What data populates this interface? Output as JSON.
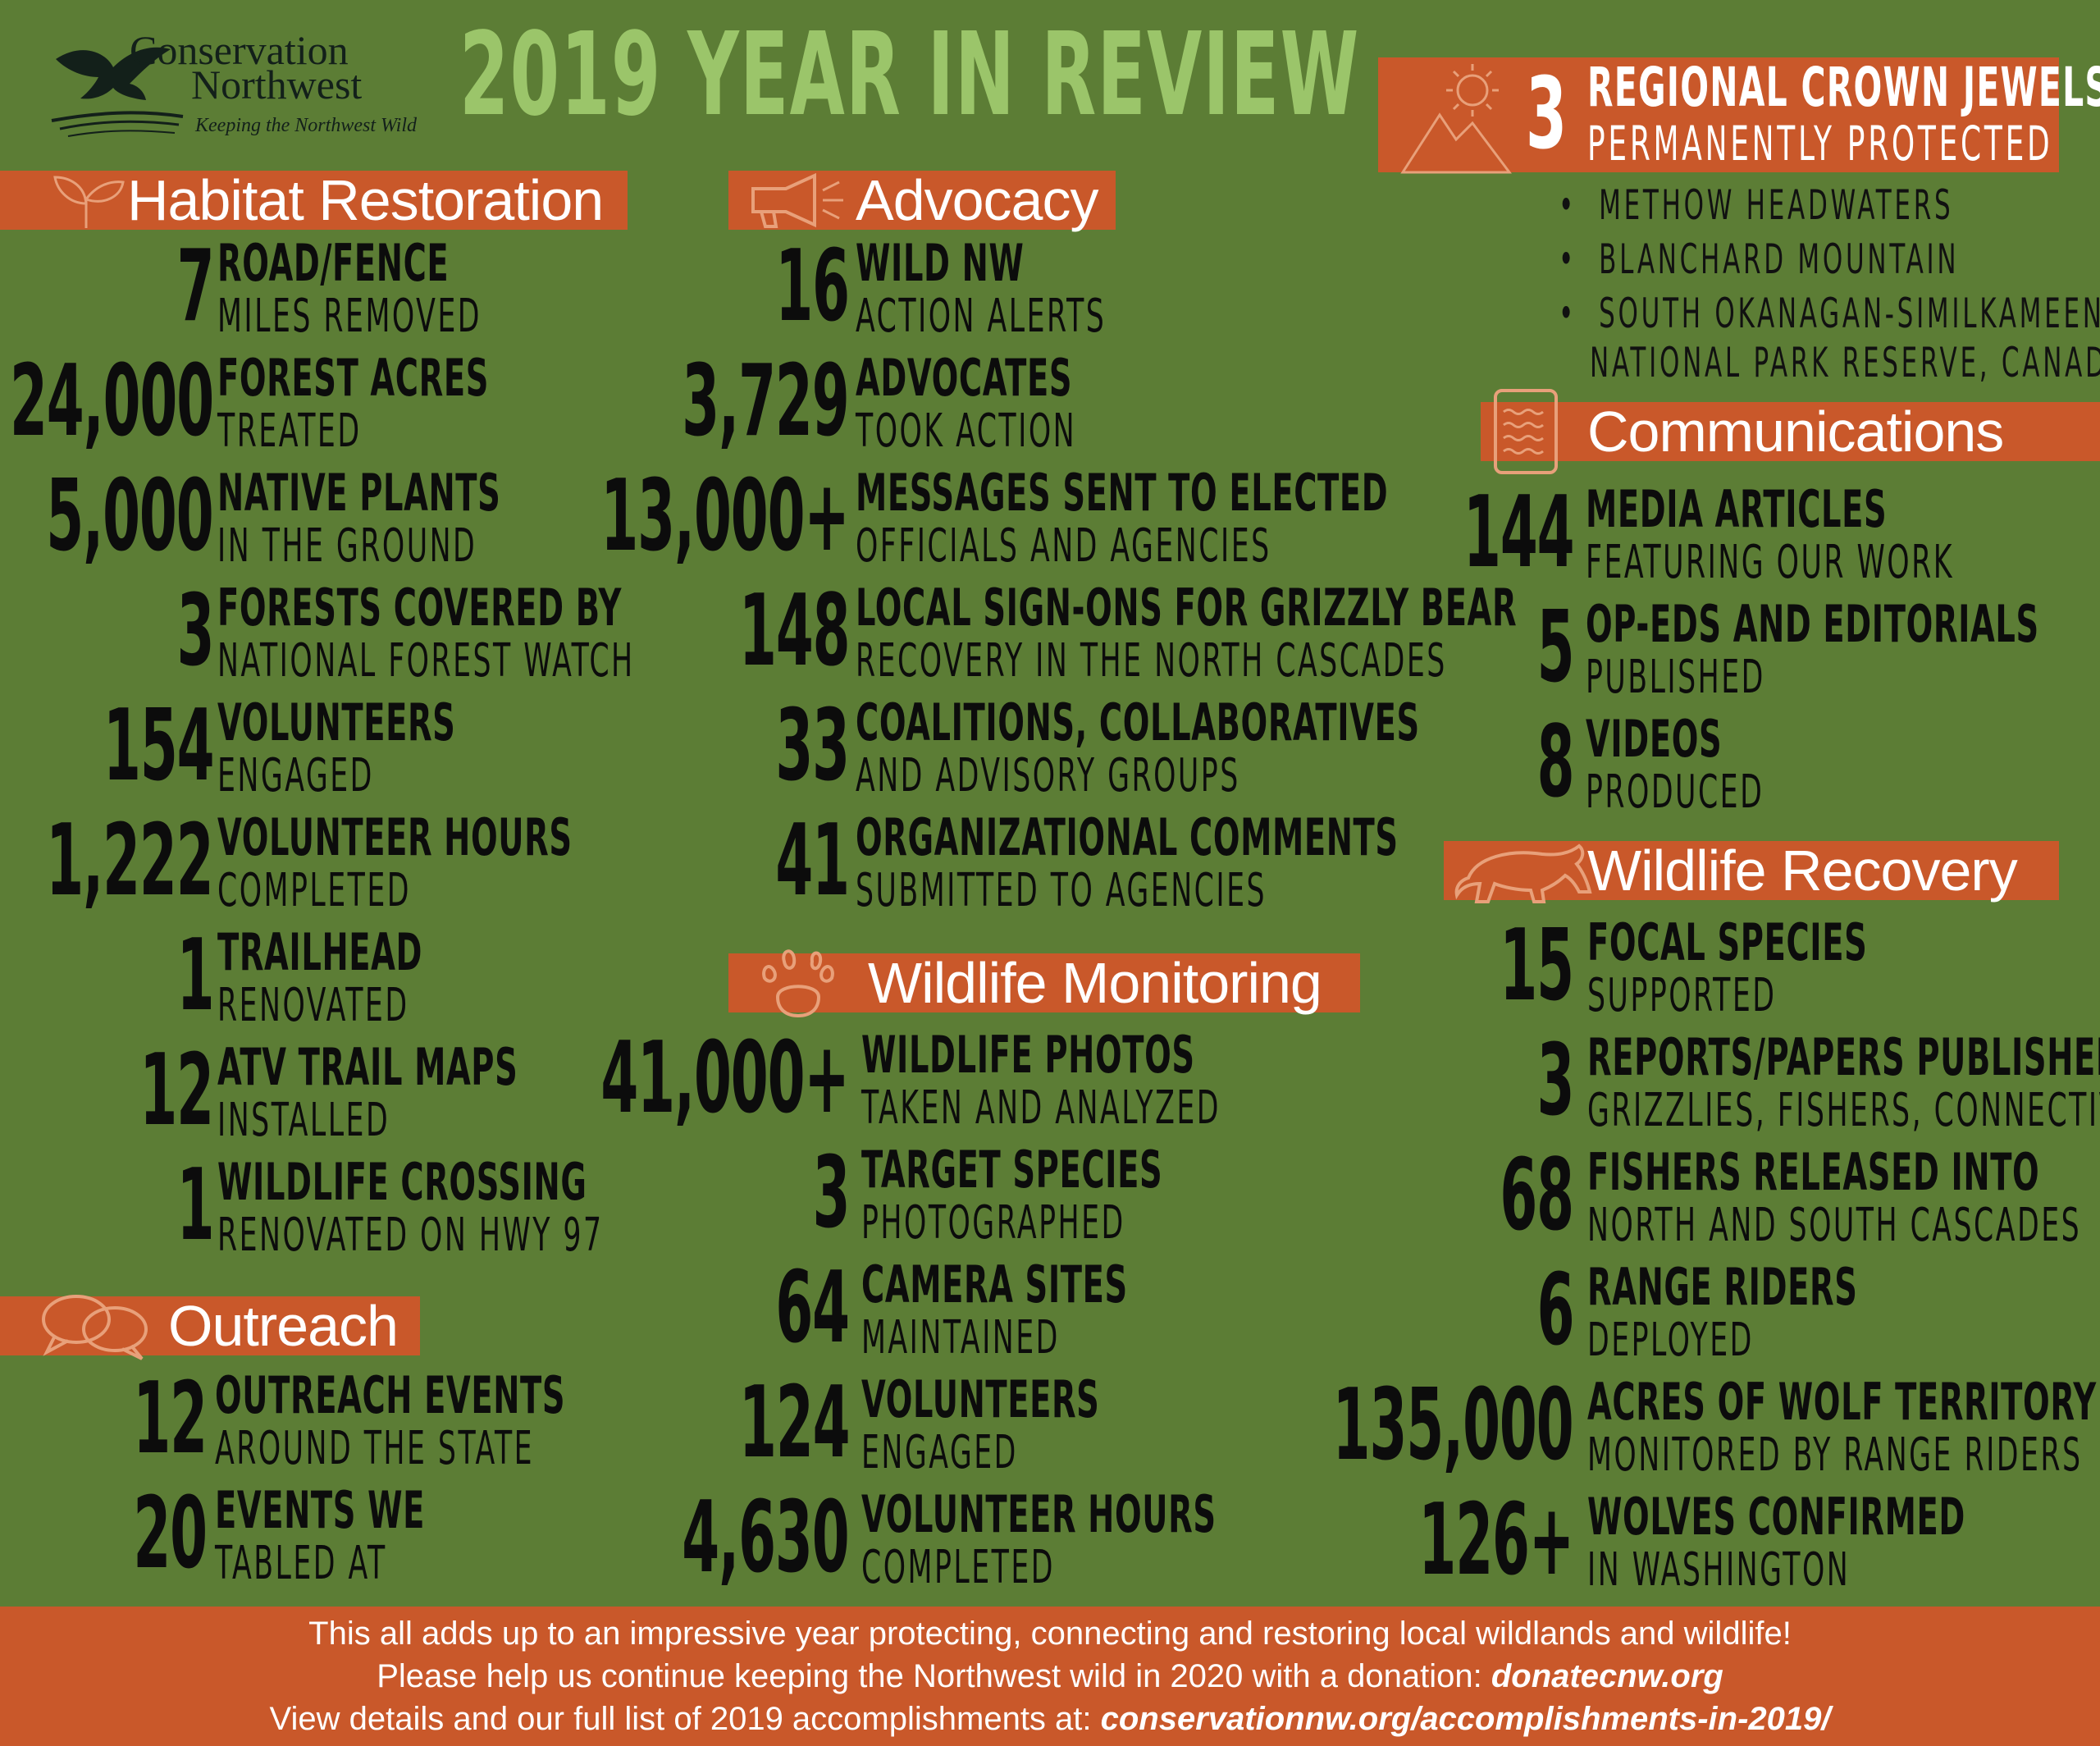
{
  "logo": {
    "name_line1": "Conservation",
    "name_line2": "Northwest",
    "tagline": "Keeping the Northwest Wild"
  },
  "title": "2019 YEAR IN REVIEW",
  "crown_jewels": {
    "number": "3",
    "line1": "REGIONAL CROWN JEWELS",
    "line2": "PERMANENTLY PROTECTED",
    "items": [
      "METHOW HEADWATERS",
      "BLANCHARD MOUNTAIN",
      "SOUTH OKANAGAN-SIMILKAMEEN",
      "NATIONAL PARK RESERVE, CANADA"
    ]
  },
  "sections": {
    "habitat": {
      "title": "Habitat Restoration",
      "stats": [
        {
          "num": "7",
          "l1": "ROAD/FENCE",
          "l2": "MILES REMOVED"
        },
        {
          "num": "24,000",
          "l1": "FOREST ACRES",
          "l2": "TREATED"
        },
        {
          "num": "5,000",
          "l1": "NATIVE PLANTS",
          "l2": "IN THE GROUND"
        },
        {
          "num": "3",
          "l1": "FORESTS COVERED BY",
          "l2": "NATIONAL FOREST WATCH"
        },
        {
          "num": "154",
          "l1": "VOLUNTEERS",
          "l2": "ENGAGED"
        },
        {
          "num": "1,222",
          "l1": "VOLUNTEER HOURS",
          "l2": "COMPLETED"
        },
        {
          "num": "1",
          "l1": "TRAILHEAD",
          "l2": "RENOVATED"
        },
        {
          "num": "12",
          "l1": "ATV TRAIL MAPS",
          "l2": "INSTALLED"
        },
        {
          "num": "1",
          "l1": "WILDLIFE CROSSING",
          "l2": "RENOVATED ON HWY 97"
        }
      ]
    },
    "outreach": {
      "title": "Outreach",
      "stats": [
        {
          "num": "12",
          "l1": "OUTREACH EVENTS",
          "l2": "AROUND THE STATE"
        },
        {
          "num": "20",
          "l1": "EVENTS WE",
          "l2": "TABLED AT"
        }
      ]
    },
    "advocacy": {
      "title": "Advocacy",
      "stats": [
        {
          "num": "16",
          "l1": "WILD NW",
          "l2": "ACTION ALERTS"
        },
        {
          "num": "3,729",
          "l1": "ADVOCATES",
          "l2": "TOOK ACTION"
        },
        {
          "num": "13,000+",
          "l1": "MESSAGES SENT TO ELECTED",
          "l2": "OFFICIALS AND AGENCIES"
        },
        {
          "num": "148",
          "l1": "LOCAL SIGN-ONS FOR GRIZZLY BEAR",
          "l2": "RECOVERY IN THE NORTH CASCADES"
        },
        {
          "num": "33",
          "l1": "COALITIONS, COLLABORATIVES",
          "l2": "AND ADVISORY GROUPS"
        },
        {
          "num": "41",
          "l1": "ORGANIZATIONAL COMMENTS",
          "l2": "SUBMITTED TO AGENCIES"
        }
      ]
    },
    "monitoring": {
      "title": "Wildlife Monitoring",
      "stats": [
        {
          "num": "41,000+",
          "l1": "WILDLIFE PHOTOS",
          "l2": "TAKEN AND ANALYZED"
        },
        {
          "num": "3",
          "l1": "TARGET SPECIES",
          "l2": "PHOTOGRAPHED"
        },
        {
          "num": "64",
          "l1": "CAMERA SITES",
          "l2": "MAINTAINED"
        },
        {
          "num": "124",
          "l1": "VOLUNTEERS",
          "l2": "ENGAGED"
        },
        {
          "num": "4,630",
          "l1": "VOLUNTEER HOURS",
          "l2": "COMPLETED"
        }
      ]
    },
    "communications": {
      "title": "Communications",
      "stats": [
        {
          "num": "144",
          "l1": "MEDIA ARTICLES",
          "l2": "FEATURING OUR WORK"
        },
        {
          "num": "5",
          "l1": "OP-EDS AND EDITORIALS",
          "l2": "PUBLISHED"
        },
        {
          "num": "8",
          "l1": "VIDEOS",
          "l2": "PRODUCED"
        }
      ]
    },
    "recovery": {
      "title": "Wildlife Recovery",
      "stats": [
        {
          "num": "15",
          "l1": "FOCAL SPECIES",
          "l2": "SUPPORTED"
        },
        {
          "num": "3",
          "l1": "REPORTS/PAPERS PUBLISHED",
          "l2": "GRIZZLIES, FISHERS, CONNECTIVITY"
        },
        {
          "num": "68",
          "l1": "FISHERS RELEASED INTO",
          "l2": "NORTH AND SOUTH CASCADES"
        },
        {
          "num": "6",
          "l1": "RANGE RIDERS",
          "l2": "DEPLOYED"
        },
        {
          "num": "135,000",
          "l1": "ACRES OF WOLF TERRITORY",
          "l2": "MONITORED BY RANGE RIDERS"
        },
        {
          "num": "126+",
          "l1": "WOLVES CONFIRMED",
          "l2": "IN WASHINGTON"
        }
      ]
    }
  },
  "footer": {
    "line1": "This all adds up to an impressive year protecting, connecting and restoring local wildlands and wildlife!",
    "line2_text": "Please help us continue keeping the Northwest wild in 2020 with a donation: ",
    "line2_link": "donatecnw.org",
    "line3_text": "View details and our full list of 2019 accomplishments at: ",
    "line3_link": "conservationnw.org/accomplishments-in-2019/"
  },
  "colors": {
    "background": "#5c7d35",
    "accent": "#c9582a",
    "title": "#9bc56a"
  },
  "icons": {
    "habitat": "sprout-icon",
    "advocacy": "megaphone-icon",
    "monitoring": "paw-print-icon",
    "outreach": "speech-bubbles-icon",
    "crown": "mountain-sun-icon",
    "communications": "notepad-icon",
    "recovery": "cougar-icon",
    "logo": "eagle-icon"
  }
}
